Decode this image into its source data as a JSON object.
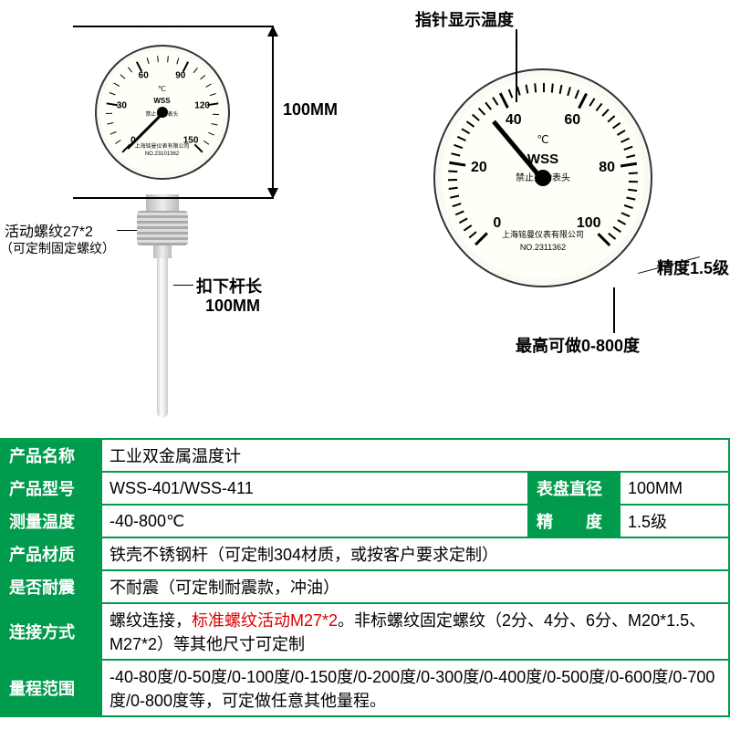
{
  "gauge1": {
    "min_angle": -225,
    "max_angle": 45,
    "ticks": [
      0,
      30,
      60,
      90,
      120,
      150
    ],
    "minor_per_major": 5,
    "unit": "℃",
    "brand": "WSS",
    "warning": "禁止扭动表头",
    "maker": "上海铭曼仪表有限公司",
    "serial": "NO.23101362",
    "needle_angle": -225
  },
  "gauge2": {
    "min_angle": -225,
    "max_angle": 45,
    "ticks": [
      0,
      20,
      40,
      60,
      80,
      100
    ],
    "minor_per_major": 10,
    "unit": "℃",
    "brand": "WSS",
    "warning": "禁止扭动表头",
    "maker": "上海铭曼仪表有限公司",
    "serial": "NO.2311362",
    "needle_angle": -130
  },
  "callouts": {
    "dial_dim": "100MM",
    "thread_label1": "活动螺纹27*2",
    "thread_label2": "（可定制固定螺纹）",
    "probe_label1": "扣下杆长",
    "probe_label2": "100MM",
    "pointer_label": "指针显示温度",
    "precision_label": "精度1.5级",
    "range_label": "最高可做0-800度"
  },
  "table": {
    "rows": [
      {
        "h": "产品名称",
        "c": "工业双金属温度计",
        "span": 3
      },
      {
        "h": "产品型号",
        "c": "WSS-401/WSS-411",
        "h2": "表盘直径",
        "c2": "100MM"
      },
      {
        "h": "测量温度",
        "c": "-40-800℃",
        "h2": "精　　度",
        "c2": "1.5级"
      },
      {
        "h": "产品材质",
        "c": "铁壳不锈钢杆（可定制304材质，或按客户要求定制）",
        "span": 3
      },
      {
        "h": "是否耐震",
        "c": "不耐震（可定制耐震款，冲油）",
        "span": 3
      },
      {
        "h": "连接方式",
        "c": "螺纹连接，<span class='red'>标准螺纹活动M27*2</span>。非标螺纹固定螺纹（2分、4分、6分、M20*1.5、M27*2）等其他尺寸可定制",
        "span": 3,
        "tall": true
      },
      {
        "h": "量程范围",
        "c": "-40-80度/0-50度/0-100度/0-150度/0-200度/0-300度/0-400度/0-500度/0-600度/0-700度/0-800度等，可定做任意其他量程。",
        "span": 3,
        "tall": true
      }
    ]
  },
  "colors": {
    "brand_green": "#009b4c",
    "red": "#d00"
  }
}
